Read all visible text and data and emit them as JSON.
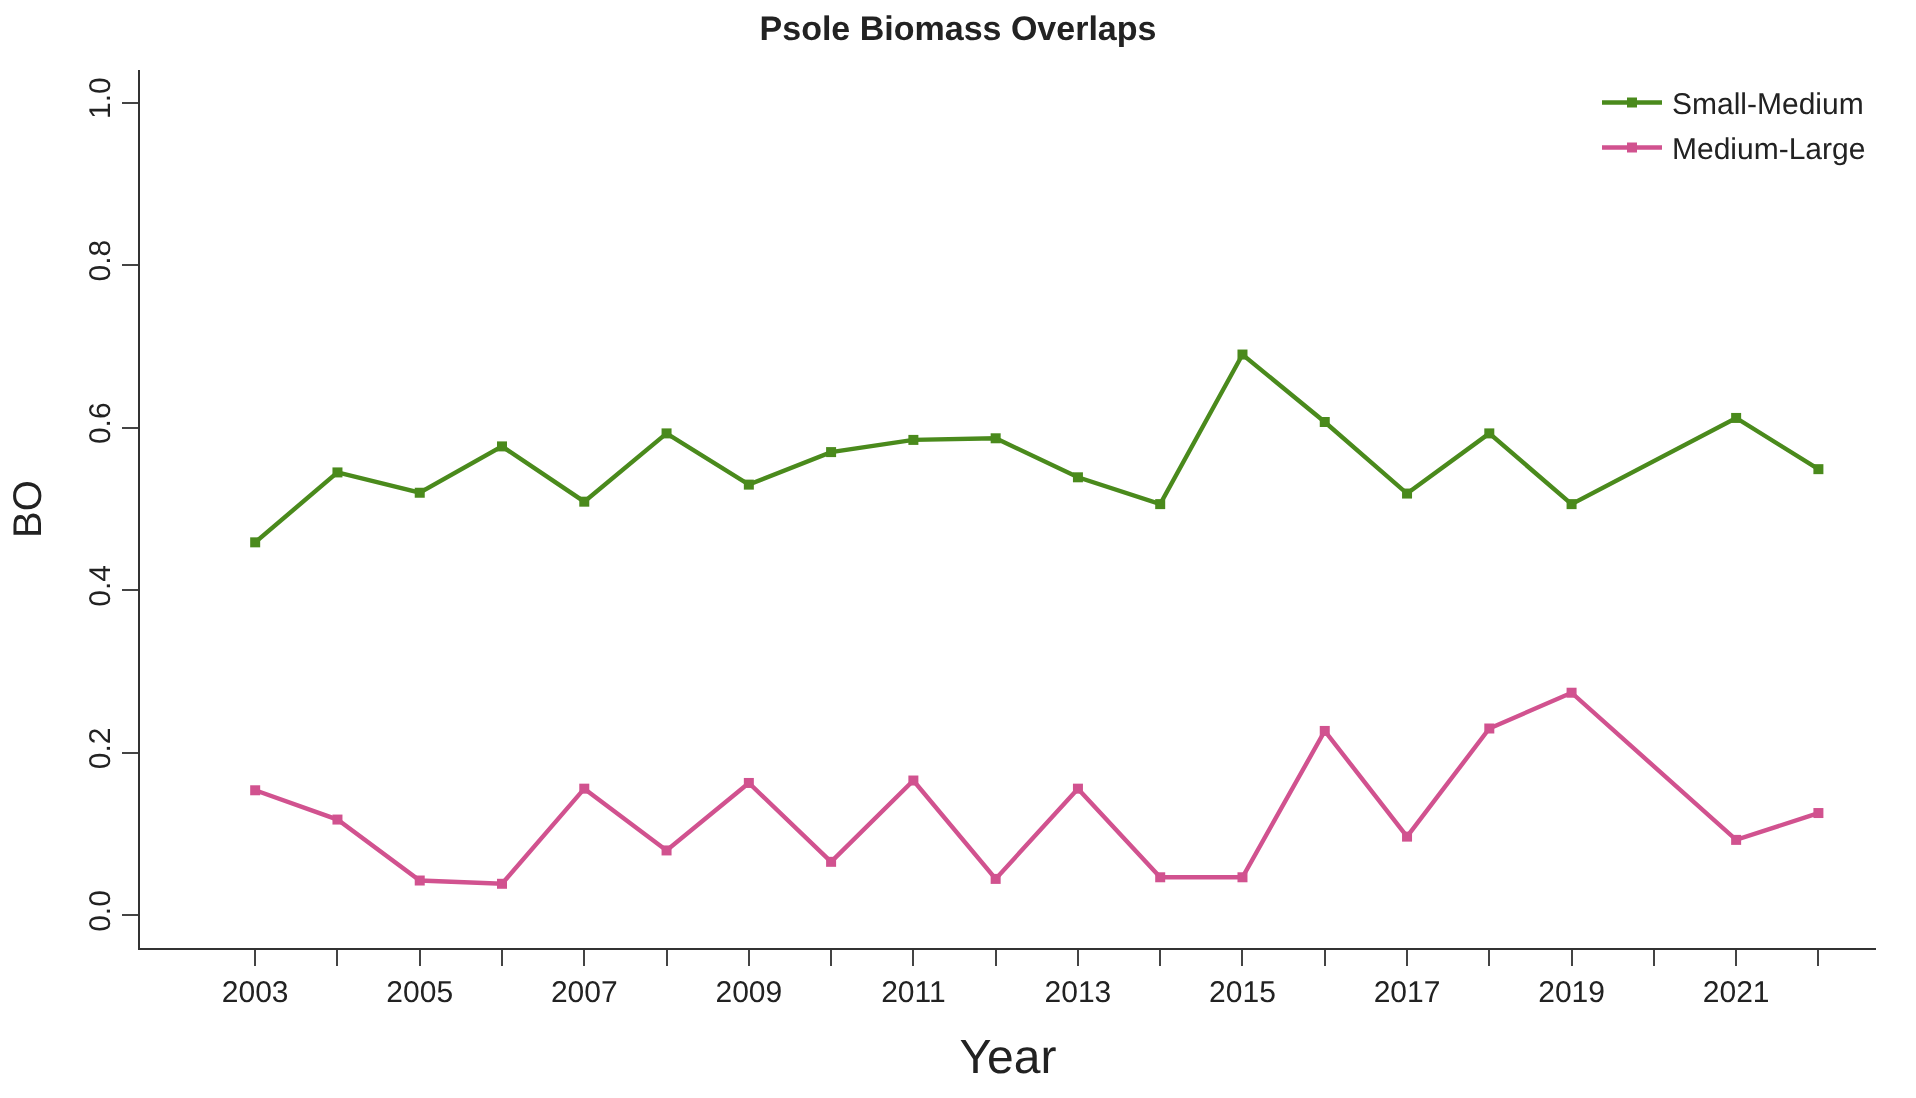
{
  "chart_data": {
    "type": "line",
    "title": "Psole Biomass Overlaps",
    "xlabel": "Year",
    "ylabel": "BO",
    "series": [
      {
        "name": "Small-Medium",
        "color": "#4a8a1c",
        "x": [
          2003,
          2004,
          2005,
          2006,
          2007,
          2008,
          2009,
          2010,
          2011,
          2012,
          2013,
          2014,
          2015,
          2016,
          2017,
          2018,
          2019,
          2021,
          2022
        ],
        "values": [
          0.459,
          0.545,
          0.52,
          0.577,
          0.509,
          0.593,
          0.53,
          0.57,
          0.585,
          0.587,
          0.539,
          0.506,
          0.69,
          0.607,
          0.519,
          0.593,
          0.506,
          0.612,
          0.549
        ]
      },
      {
        "name": "Medium-Large",
        "color": "#d1528f",
        "x": [
          2003,
          2004,
          2005,
          2006,
          2007,
          2008,
          2009,
          2010,
          2011,
          2012,
          2013,
          2014,
          2015,
          2016,
          2017,
          2018,
          2019,
          2021,
          2022
        ],
        "values": [
          0.154,
          0.118,
          0.043,
          0.039,
          0.156,
          0.08,
          0.163,
          0.066,
          0.166,
          0.045,
          0.156,
          0.047,
          0.047,
          0.227,
          0.097,
          0.23,
          0.274,
          0.093,
          0.126
        ]
      }
    ],
    "xlim": [
      2001.6,
      2022.7
    ],
    "ylim": [
      -0.04,
      1.04
    ],
    "xticks": [
      2003,
      {
        "value": 2004,
        "label": null
      },
      2005,
      {
        "value": 2006,
        "label": null
      },
      2007,
      {
        "value": 2008,
        "label": null
      },
      2009,
      {
        "value": 2010,
        "label": null
      },
      2011,
      {
        "value": 2012,
        "label": null
      },
      2013,
      {
        "value": 2014,
        "label": null
      },
      2015,
      {
        "value": 2016,
        "label": null
      },
      2017,
      {
        "value": 2018,
        "label": null
      },
      2019,
      {
        "value": 2020,
        "label": null
      },
      2021,
      {
        "value": 2022,
        "label": null
      }
    ],
    "yticks": [
      {
        "value": 0,
        "label": "0.0"
      },
      0.2,
      0.4,
      0.6,
      0.8,
      {
        "value": 1,
        "label": "1.0"
      }
    ],
    "legend": "top right",
    "marker": "square",
    "line_style": "solid"
  }
}
